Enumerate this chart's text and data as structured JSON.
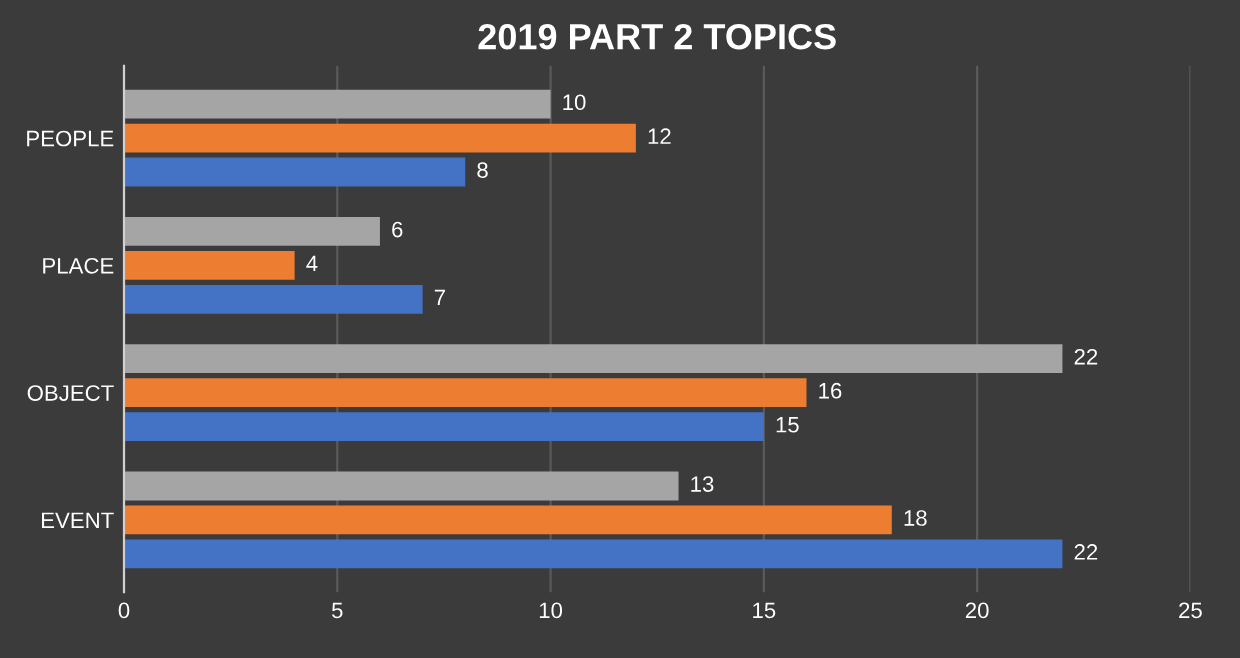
{
  "chart_data": {
    "type": "bar",
    "orientation": "horizontal",
    "title": "2019 PART 2 TOPICS",
    "categories": [
      "PEOPLE",
      "PLACE",
      "OBJECT",
      "EVENT"
    ],
    "series": [
      {
        "color": "#4472c4",
        "values": [
          8,
          7,
          15,
          22
        ]
      },
      {
        "color": "#ed7d31",
        "values": [
          12,
          4,
          16,
          18
        ]
      },
      {
        "color": "#a5a5a5",
        "values": [
          10,
          6,
          22,
          13
        ]
      }
    ],
    "xlim": [
      0,
      25
    ],
    "xticks": [
      0,
      5,
      10,
      15,
      20,
      25
    ],
    "grid": "x",
    "data_labels": true,
    "legend": false
  }
}
